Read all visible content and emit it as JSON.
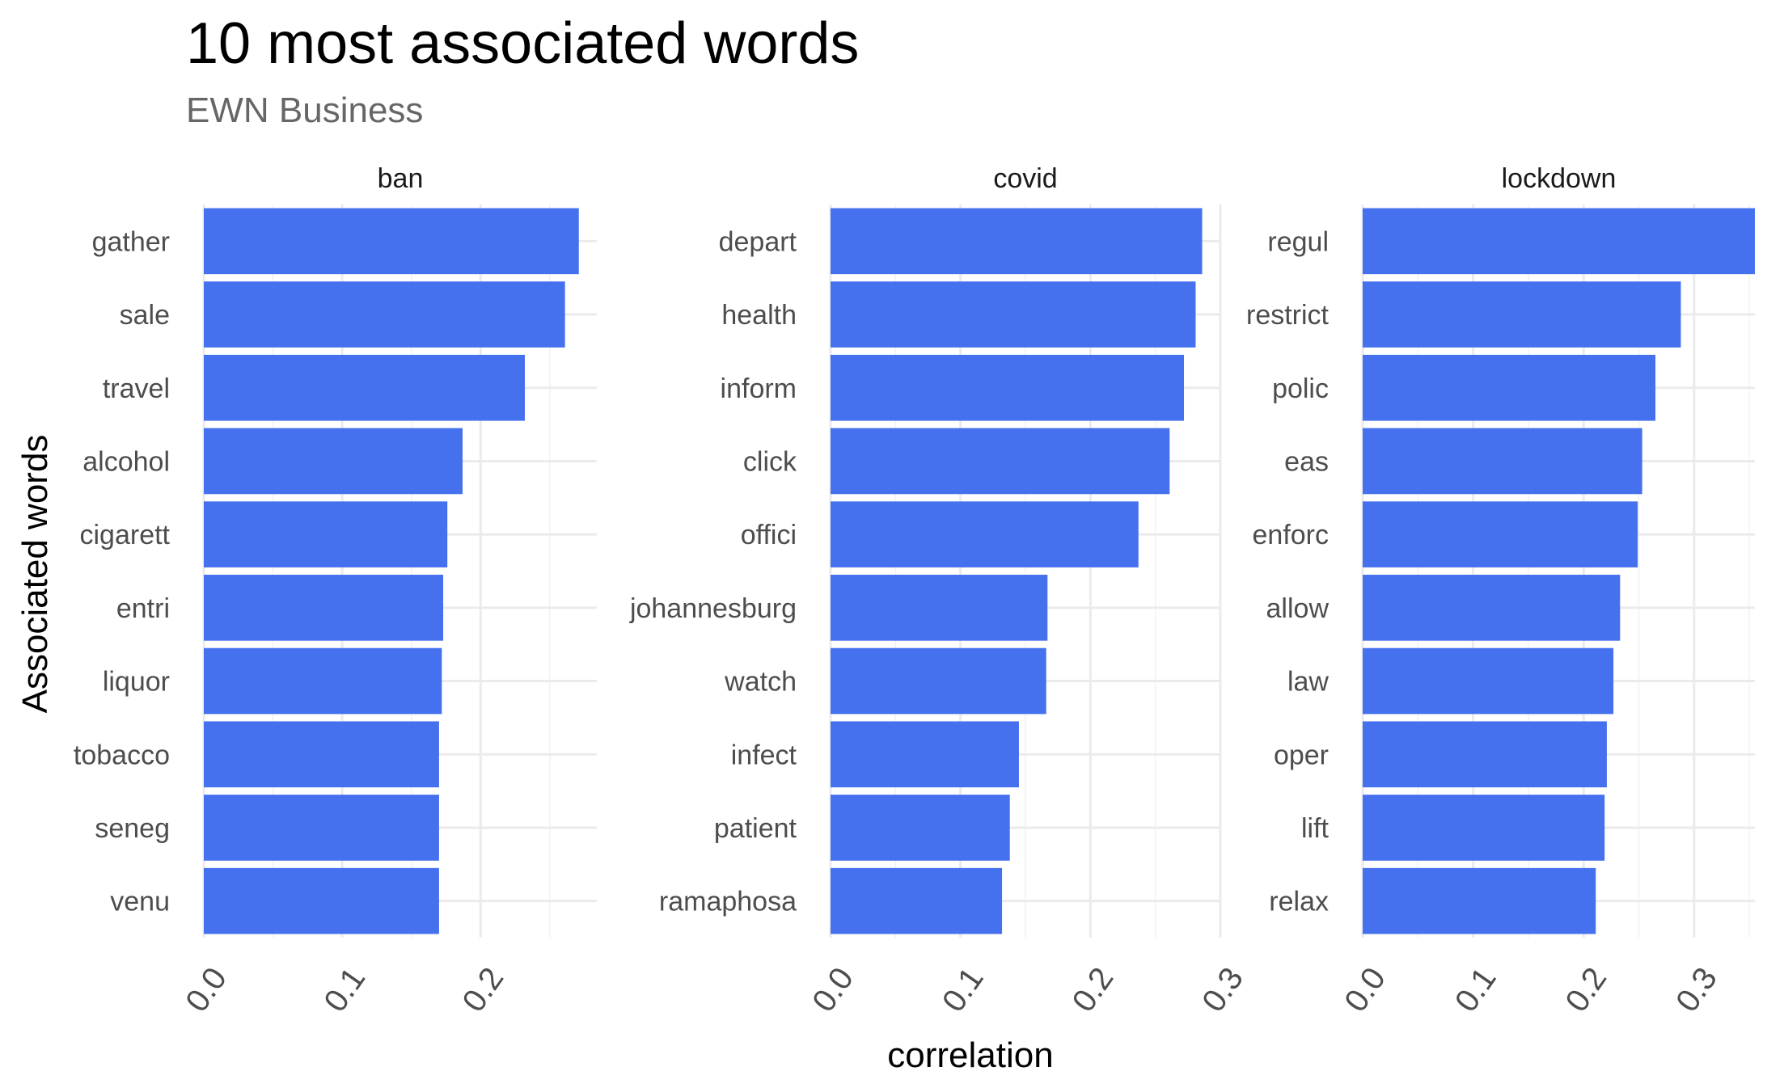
{
  "chart_data": {
    "type": "bar",
    "orientation": "horizontal",
    "title": "10 most associated words",
    "subtitle": "EWN Business",
    "xlabel": "correlation",
    "ylabel": "Associated words",
    "bar_color": "#4570EE",
    "grid": true,
    "legend": "none",
    "panels": [
      {
        "name": "ban",
        "xlim": [
          0,
          0.284
        ],
        "ticks": [
          "0.0",
          "0.1",
          "0.2"
        ],
        "tick_values": [
          0,
          0.1,
          0.2
        ],
        "categories": [
          "gather",
          "sale",
          "travel",
          "alcohol",
          "cigarett",
          "entri",
          "liquor",
          "tobacco",
          "seneg",
          "venu"
        ],
        "values": [
          0.271,
          0.261,
          0.232,
          0.187,
          0.176,
          0.173,
          0.172,
          0.17,
          0.17,
          0.17
        ]
      },
      {
        "name": "covid",
        "xlim": [
          0,
          0.3
        ],
        "ticks": [
          "0.0",
          "0.1",
          "0.2",
          "0.3"
        ],
        "tick_values": [
          0,
          0.1,
          0.2,
          0.3
        ],
        "categories": [
          "depart",
          "health",
          "inform",
          "click",
          "offici",
          "johannesburg",
          "watch",
          "infect",
          "patient",
          "ramaphosa"
        ],
        "values": [
          0.286,
          0.281,
          0.272,
          0.261,
          0.237,
          0.167,
          0.166,
          0.145,
          0.138,
          0.132
        ]
      },
      {
        "name": "lockdown",
        "xlim": [
          0,
          0.355
        ],
        "ticks": [
          "0.0",
          "0.1",
          "0.2",
          "0.3"
        ],
        "tick_values": [
          0,
          0.1,
          0.2,
          0.3
        ],
        "categories": [
          "regul",
          "restrict",
          "polic",
          "eas",
          "enforc",
          "allow",
          "law",
          "oper",
          "lift",
          "relax"
        ],
        "values": [
          0.355,
          0.288,
          0.265,
          0.253,
          0.249,
          0.233,
          0.227,
          0.221,
          0.219,
          0.211
        ]
      }
    ]
  }
}
